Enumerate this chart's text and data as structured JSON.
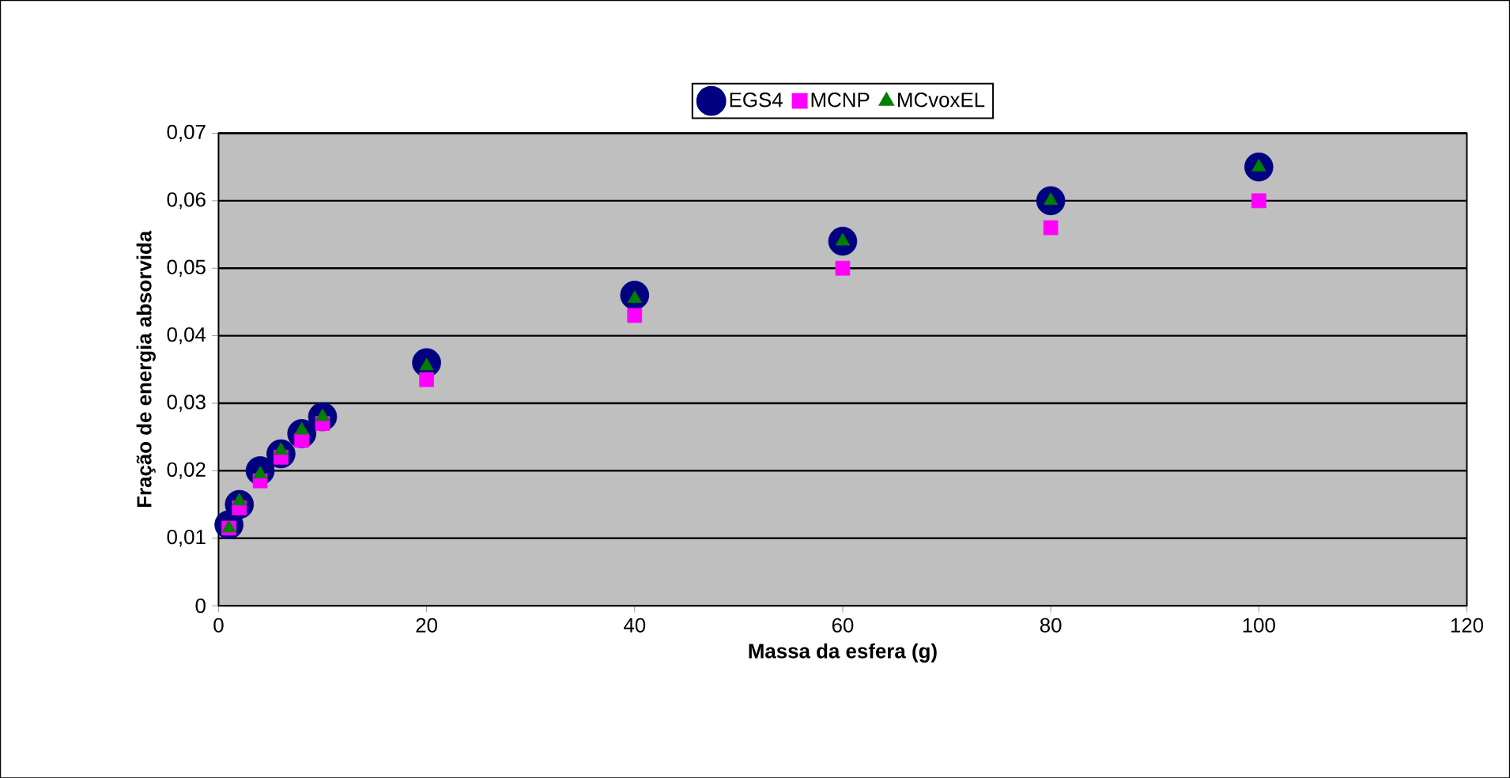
{
  "chart_data": {
    "type": "scatter",
    "xlabel": "Massa da esfera (g)",
    "ylabel": "Fração de energia absorvida",
    "x": [
      1,
      2,
      4,
      6,
      8,
      10,
      20,
      40,
      60,
      80,
      100
    ],
    "series": [
      {
        "name": "EGS4",
        "color": "#000080",
        "marker": "circle",
        "values": [
          0.012,
          0.015,
          0.02,
          0.0225,
          0.0255,
          0.028,
          0.036,
          0.046,
          0.054,
          0.06,
          0.065
        ]
      },
      {
        "name": "MCNP",
        "color": "#ff00ff",
        "marker": "square",
        "values": [
          0.0115,
          0.0145,
          0.0185,
          0.022,
          0.0245,
          0.027,
          0.0335,
          0.043,
          0.05,
          0.056,
          0.06
        ]
      },
      {
        "name": "MCvoxEL",
        "color": "#008000",
        "marker": "triangle",
        "values": [
          0.0115,
          0.0155,
          0.0195,
          0.023,
          0.026,
          0.028,
          0.0355,
          0.0455,
          0.054,
          0.06,
          0.065
        ]
      }
    ],
    "xlim": [
      0,
      120
    ],
    "xticks": [
      0,
      20,
      40,
      60,
      80,
      100,
      120
    ],
    "ylim": [
      0,
      0.07
    ],
    "yticks": [
      {
        "value": 0,
        "label": "0"
      },
      {
        "value": 0.01,
        "label": "0,01"
      },
      {
        "value": 0.02,
        "label": "0,02"
      },
      {
        "value": 0.03,
        "label": "0,03"
      },
      {
        "value": 0.04,
        "label": "0,04"
      },
      {
        "value": 0.05,
        "label": "0,05"
      },
      {
        "value": 0.06,
        "label": "0,06"
      },
      {
        "value": 0.07,
        "label": "0,07"
      }
    ],
    "grid": "y",
    "legend": "top"
  }
}
